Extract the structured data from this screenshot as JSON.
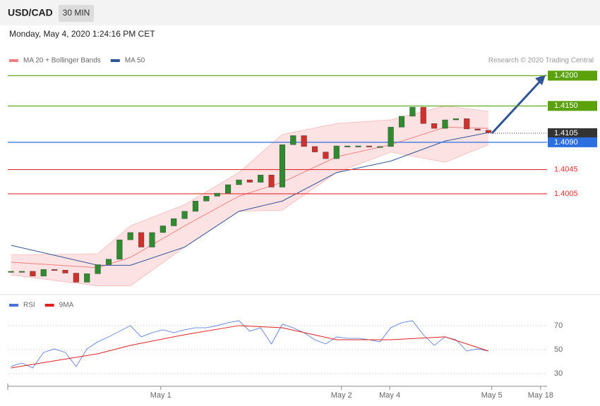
{
  "header": {
    "symbol": "USD/CAD",
    "interval": "30 MIN",
    "timestamp": "Monday, May 4, 2020 1:24:16 PM CET"
  },
  "chart_data": [
    {
      "type": "candlestick",
      "legend": [
        {
          "name": "MA 20 + Bollinger Bands",
          "color": "#f08080"
        },
        {
          "name": "MA 50",
          "color": "#2f5597"
        }
      ],
      "credit": "Research © 2020 Trading Central",
      "xlim": [
        -0.3,
        49.4
      ],
      "ylim": [
        1.3842,
        1.4283
      ],
      "close": [
        1.3877,
        1.3877,
        1.3869,
        1.388,
        1.3879,
        1.3874,
        1.3859,
        1.3873,
        1.3888,
        1.3897,
        1.3929,
        1.3941,
        1.3917,
        1.3941,
        1.3952,
        1.3964,
        1.3976,
        1.3993,
        1.4001,
        1.4006,
        1.402,
        1.4028,
        1.4024,
        1.4036,
        1.4016,
        1.4086,
        1.4101,
        1.4083,
        1.4074,
        1.4063,
        1.4084,
        1.4084,
        1.4084,
        1.4083,
        1.4083,
        1.4115,
        1.4133,
        1.4148,
        1.4121,
        1.4113,
        1.4127,
        1.4129,
        1.4112,
        1.411,
        1.4106
      ],
      "up_color": "#2e8b2e",
      "down_color": "#d0312d",
      "ma_x": [
        0,
        8,
        11,
        16,
        21,
        25,
        30,
        35,
        40,
        44
      ],
      "ma20": [
        1.3892,
        1.3883,
        1.39,
        1.3952,
        1.4001,
        1.4024,
        1.4066,
        1.4086,
        1.4115,
        1.4113
      ],
      "ma50": [
        1.392,
        1.3887,
        1.3887,
        1.3917,
        1.3976,
        1.3993,
        1.404,
        1.4059,
        1.4092,
        1.4106
      ],
      "band_upper": [
        1.3904,
        1.3906,
        1.3952,
        1.3987,
        1.404,
        1.4103,
        1.4121,
        1.4127,
        1.415,
        1.4141
      ],
      "band_lower": [
        1.3871,
        1.3853,
        1.3853,
        1.3917,
        1.3976,
        1.3978,
        1.404,
        1.4074,
        1.4057,
        1.4086
      ],
      "levels": [
        {
          "value": 1.42,
          "label": "1.4200",
          "color": "#5aa10a",
          "boxed": true,
          "style": "solid"
        },
        {
          "value": 1.415,
          "label": "1.4150",
          "color": "#5aa10a",
          "boxed": true,
          "style": "solid"
        },
        {
          "value": 1.4105,
          "label": "1.4105",
          "color": "#333333",
          "boxed": true,
          "style": "dotted"
        },
        {
          "value": 1.409,
          "label": "1.4090",
          "color": "#2b6fe0",
          "boxed": true,
          "style": "solid"
        },
        {
          "value": 1.4045,
          "label": "1.4045",
          "color": "#e03030",
          "boxed": false,
          "style": "solid"
        },
        {
          "value": 1.4005,
          "label": "1.4005",
          "color": "#e03030",
          "boxed": false,
          "style": "solid"
        }
      ]
    },
    {
      "type": "line",
      "xlim": [
        -0.3,
        49.4
      ],
      "ylim": [
        19.4,
        82.9
      ],
      "yticks": [
        30,
        50,
        70
      ],
      "grid": true,
      "xticks": [
        {
          "value": 13.8,
          "label": "May 1"
        },
        {
          "value": 30.45,
          "label": "May 2"
        },
        {
          "value": 34.9,
          "label": "May 4"
        },
        {
          "value": 44.3,
          "label": "May 5"
        },
        {
          "value": 48.8,
          "label": "May 18"
        }
      ],
      "series": [
        {
          "name": "RSI",
          "color": "#4a72d8",
          "x": [
            0,
            1,
            2,
            3,
            4,
            5,
            6,
            7,
            8,
            9,
            10,
            11,
            12,
            13,
            14,
            15,
            16,
            17,
            18,
            19,
            20,
            21,
            22,
            23,
            24,
            25,
            26,
            27,
            28,
            29,
            30,
            31,
            32,
            33,
            34,
            35,
            36,
            37,
            38,
            39,
            40,
            41,
            42,
            43,
            44
          ],
          "values": [
            35.9,
            38.8,
            34.7,
            47.6,
            50.6,
            47.6,
            35.9,
            50.6,
            56.5,
            60.6,
            65.3,
            70.0,
            60.6,
            64.1,
            66.5,
            64.1,
            66.5,
            68.2,
            68.2,
            70.0,
            72.4,
            74.1,
            65.3,
            68.2,
            54.7,
            71.2,
            68.2,
            64.1,
            58.2,
            54.7,
            60.6,
            59.4,
            59.4,
            58.2,
            56.5,
            68.2,
            72.4,
            74.1,
            62.4,
            53.5,
            60.6,
            58.2,
            48.8,
            50.6,
            48.8
          ]
        },
        {
          "name": "9MA",
          "color": "#e02020",
          "x": [
            0,
            8,
            11,
            16,
            21,
            25,
            30,
            35,
            40,
            44
          ],
          "values": [
            34.7,
            46.5,
            53.5,
            62.4,
            70.0,
            68.2,
            58.2,
            58.2,
            60.6,
            48.8
          ]
        }
      ]
    }
  ]
}
